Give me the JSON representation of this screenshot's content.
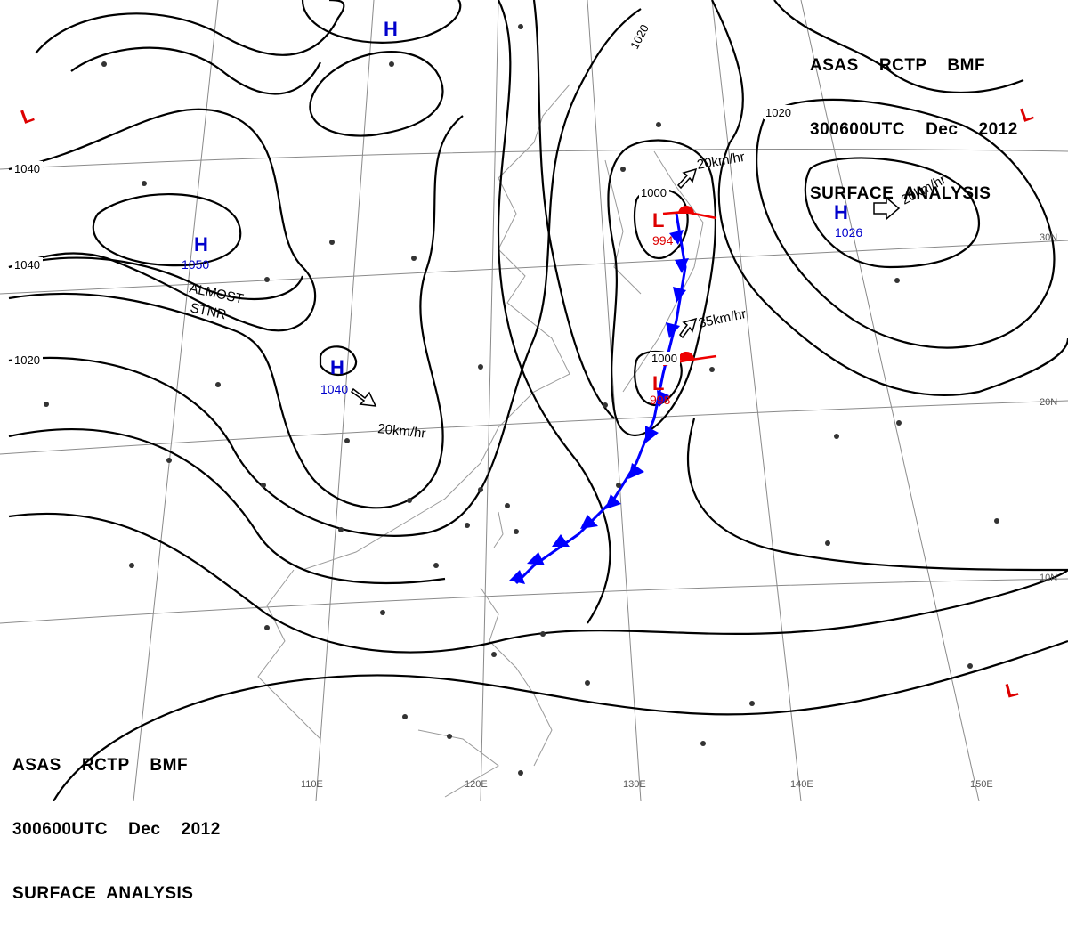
{
  "header": {
    "line1": "ASAS    RCTP    BMF",
    "line2": "300600UTC    Dec    2012",
    "line3": "SURFACE  ANALYSIS"
  },
  "isobar_labels": {
    "i1040a": "1040",
    "i1040b": "1040",
    "i1020a": "1020",
    "i1020b": "1020",
    "i1020c": "1020",
    "i1000a": "1000",
    "i1000b": "1000"
  },
  "highs": {
    "h1": {
      "symbol": "H",
      "value": "1050"
    },
    "h2": {
      "symbol": "H",
      "value": "1040"
    },
    "h3": {
      "symbol": "H",
      "value": "1026"
    },
    "h4": {
      "symbol": "H",
      "value": ""
    }
  },
  "lows": {
    "l1": {
      "symbol": "L",
      "value": "994"
    },
    "l2": {
      "symbol": "L",
      "value": "998"
    },
    "l3": {
      "symbol": "L"
    },
    "l4": {
      "symbol": "L"
    },
    "l5": {
      "symbol": "L"
    }
  },
  "annotations": {
    "almost": "ALMOST",
    "stnr": "STNR",
    "speed1": "20km/hr",
    "speed2": "20km/hr",
    "speed3": "20km/hr",
    "speed4": "35km/hr"
  },
  "longitudes": [
    "110E",
    "120E",
    "130E",
    "140E",
    "150E"
  ],
  "latitudes": [
    "30N",
    "20N",
    "10N"
  ],
  "colors": {
    "high": "#0000cc",
    "low": "#dd0000",
    "cold_front": "#0000ff",
    "warm_front": "#ee0000",
    "isobar": "#000000",
    "grid": "#888888",
    "coast": "#999999"
  }
}
